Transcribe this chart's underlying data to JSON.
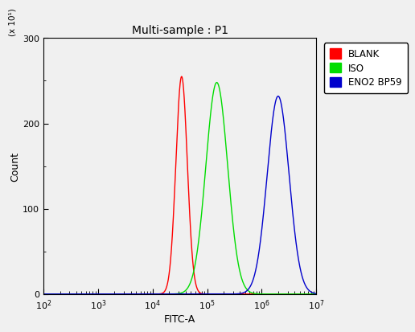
{
  "title": "Multi-sample : P1",
  "xlabel": "FITC-A",
  "ylabel": "Count",
  "ylabel_multiplier": "(x 10¹)",
  "xlim_log": [
    100,
    10000000.0
  ],
  "ylim": [
    0,
    300
  ],
  "yticks": [
    0,
    100,
    200,
    300
  ],
  "background_color": "#f0f0f0",
  "plot_bg_color": "#f0f0f0",
  "legend": [
    {
      "label": "BLANK",
      "color": "#ff0000"
    },
    {
      "label": "ISO",
      "color": "#00dd00"
    },
    {
      "label": "ENO2 BP59",
      "color": "#0000cc"
    }
  ],
  "curves": [
    {
      "name": "BLANK",
      "color": "#ff0000",
      "peak_x": 34000.0,
      "peak_y": 255,
      "sigma_log": 0.105
    },
    {
      "name": "ISO",
      "color": "#00dd00",
      "peak_x": 150000.0,
      "peak_y": 248,
      "sigma_log": 0.2
    },
    {
      "name": "ENO2 BP59",
      "color": "#0000cc",
      "peak_x": 2000000.0,
      "peak_y": 232,
      "sigma_log": 0.2
    }
  ]
}
